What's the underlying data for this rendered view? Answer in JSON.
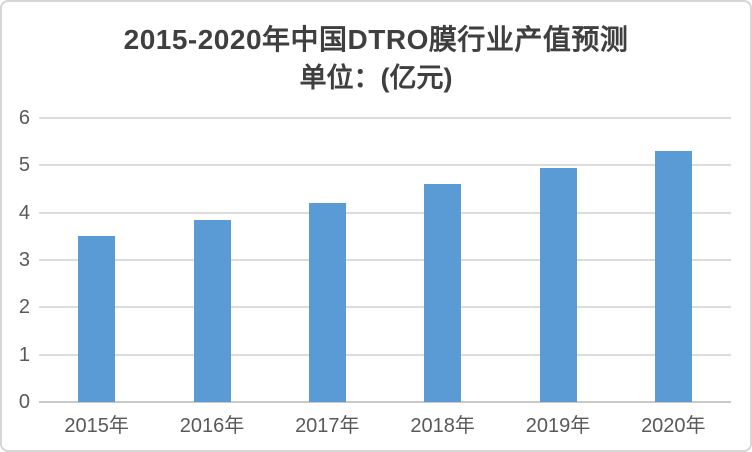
{
  "chart": {
    "title": "2015-2020年中国DTRO膜行业产值预测",
    "subtitle": "单位：(亿元)"
  },
  "chart_data": {
    "type": "bar",
    "title": "2015-2020年中国DTRO膜行业产值预测",
    "subtitle": "单位：(亿元)",
    "categories": [
      "2015年",
      "2016年",
      "2017年",
      "2018年",
      "2019年",
      "2020年"
    ],
    "values": [
      3.5,
      3.85,
      4.2,
      4.6,
      4.95,
      5.3
    ],
    "xlabel": "",
    "ylabel": "",
    "ylim": [
      0,
      6
    ],
    "yticks": [
      0,
      1,
      2,
      3,
      4,
      5,
      6
    ],
    "grid": true,
    "legend": "none",
    "colors": {
      "bar": "#5b9bd5",
      "gridline": "#dcdcdc",
      "axis_line": "#c9c9c9",
      "tick_label": "#595959",
      "title": "#3f3f3f",
      "frame_border": "#d6d6d6",
      "background": "#ffffff"
    }
  }
}
